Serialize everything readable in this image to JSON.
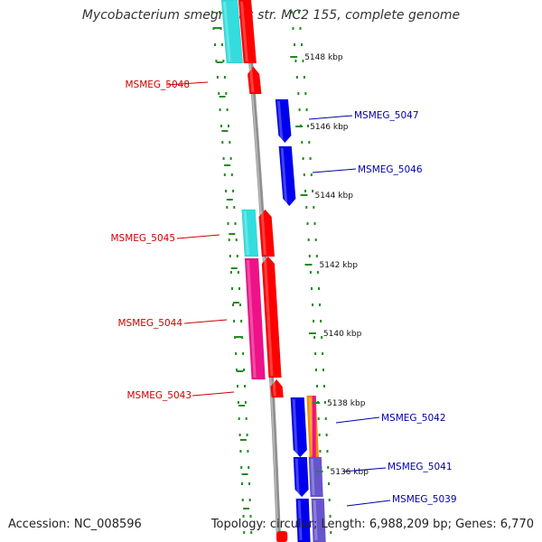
{
  "title": "Mycobacterium smegmatis str. MC2 155, complete genome",
  "footer": {
    "accession_label": "Accession:",
    "accession": "NC_008596",
    "topology_label": "Topology:",
    "topology": "circular",
    "length_label": "Length:",
    "length": "6,988,209 bp",
    "genes_label": "Genes:",
    "genes": "6,770"
  },
  "colors": {
    "backbone": "#909090",
    "tick": "#228B22",
    "left_label": "#cc0000",
    "right_label": "#0000aa",
    "cds_red": "#ff0000",
    "cds_blue": "#0000ee",
    "cog_cyan": "#33dddd",
    "cog_magenta": "#ee1188",
    "cog_purple": "#6655cc",
    "cog_orange": "#ff8800"
  },
  "ticks": [
    {
      "label": "5148 kbp"
    },
    {
      "label": "5146 kbp"
    },
    {
      "label": "5144 kbp"
    },
    {
      "label": "5142 kbp"
    },
    {
      "label": "5140 kbp"
    },
    {
      "label": "5138 kbp"
    },
    {
      "label": "5136 kbp"
    }
  ],
  "left_labels": [
    {
      "name": "MSMEG_5048"
    },
    {
      "name": "MSMEG_5045"
    },
    {
      "name": "MSMEG_5044"
    },
    {
      "name": "MSMEG_5043"
    }
  ],
  "right_labels": [
    {
      "name": "MSMEG_5047"
    },
    {
      "name": "MSMEG_5046"
    },
    {
      "name": "MSMEG_5042"
    },
    {
      "name": "MSMEG_5041"
    },
    {
      "name": "MSMEG_5039"
    }
  ],
  "features": [
    {
      "name": "cog-top-cyan",
      "color": "cog_cyan"
    },
    {
      "name": "gene-top-red",
      "color": "cds_red"
    },
    {
      "name": "gene-msmeg-5048",
      "color": "cds_red"
    },
    {
      "name": "gene-msmeg-5047",
      "color": "cds_blue"
    },
    {
      "name": "gene-msmeg-5046",
      "color": "cds_blue"
    },
    {
      "name": "cog-msmeg-5045",
      "color": "cog_cyan"
    },
    {
      "name": "gene-msmeg-5045",
      "color": "cds_red"
    },
    {
      "name": "cog-msmeg-5044",
      "color": "cog_magenta"
    },
    {
      "name": "gene-msmeg-5044",
      "color": "cds_red"
    },
    {
      "name": "gene-msmeg-5043",
      "color": "cds_red"
    },
    {
      "name": "gene-msmeg-5042",
      "color": "cds_blue"
    },
    {
      "name": "cog-msmeg-5042",
      "color": "cog_orange"
    },
    {
      "name": "gene-msmeg-5041",
      "color": "cds_blue"
    },
    {
      "name": "cog-msmeg-5041",
      "color": "cog_purple"
    },
    {
      "name": "gene-msmeg-5039",
      "color": "cds_blue"
    },
    {
      "name": "cog-msmeg-5039",
      "color": "cog_purple"
    }
  ]
}
